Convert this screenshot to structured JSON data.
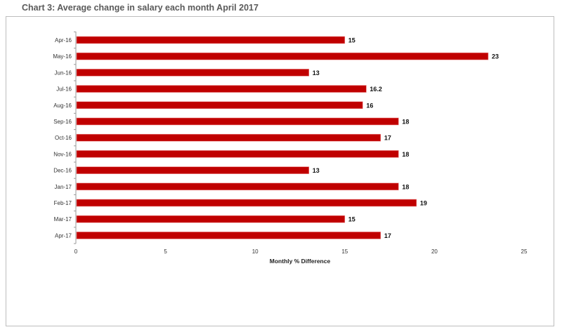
{
  "chart_data": {
    "type": "bar",
    "orientation": "horizontal",
    "title": "Chart 3: Average change in salary each month April 2017",
    "xlabel": "Monthly % Difference",
    "ylabel": "",
    "categories": [
      "Apr-16",
      "May-16",
      "Jun-16",
      "Jul-16",
      "Aug-16",
      "Sep-16",
      "Oct-16",
      "Nov-16",
      "Dec-16",
      "Jan-17",
      "Feb-17",
      "Mar-17",
      "Apr-17"
    ],
    "values": [
      15,
      23,
      13,
      16.2,
      16,
      18,
      17,
      18,
      13,
      18,
      19,
      15,
      17
    ],
    "data_labels": [
      "15",
      "23",
      "13",
      "16.2",
      "16",
      "18",
      "17",
      "18",
      "13",
      "18",
      "19",
      "15",
      "17"
    ],
    "xlim": [
      0,
      25
    ],
    "xticks": [
      "0",
      "5",
      "10",
      "15",
      "20",
      "25"
    ],
    "grid": false,
    "legend": "none",
    "bar_color": "#c00000"
  }
}
